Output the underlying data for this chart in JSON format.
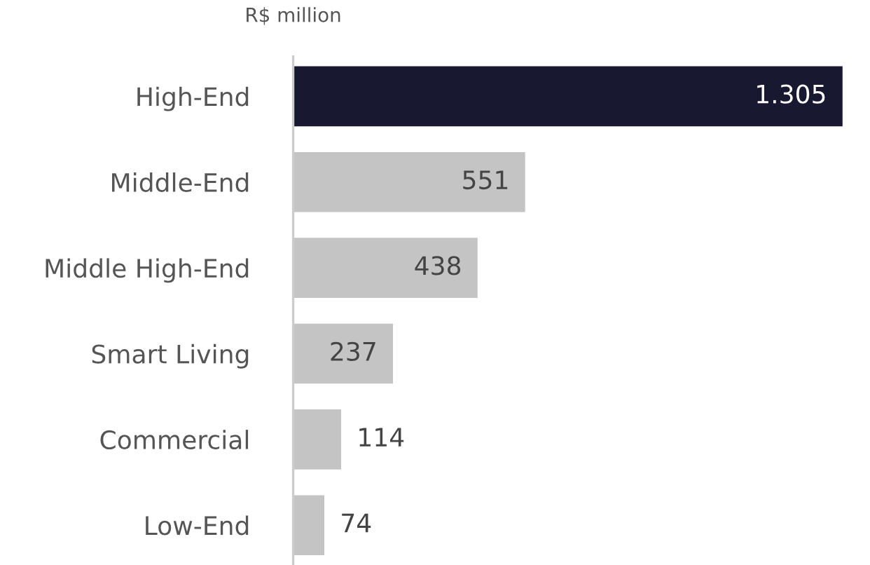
{
  "chart_data": {
    "type": "bar",
    "orientation": "horizontal",
    "ylabel": "R$ million",
    "categories": [
      "High-End",
      "Middle-End",
      "Middle High-End",
      "Smart Living",
      "Commercial",
      "Low-End"
    ],
    "values": [
      1305,
      551,
      438,
      237,
      114,
      74
    ],
    "value_labels": [
      "1.305",
      "551",
      "438",
      "237",
      "114",
      "74"
    ],
    "colors": [
      "#181830",
      "#c4c4c4",
      "#c4c4c4",
      "#c4c4c4",
      "#c4c4c4",
      "#c4c4c4"
    ],
    "grid": false,
    "legend": false
  }
}
